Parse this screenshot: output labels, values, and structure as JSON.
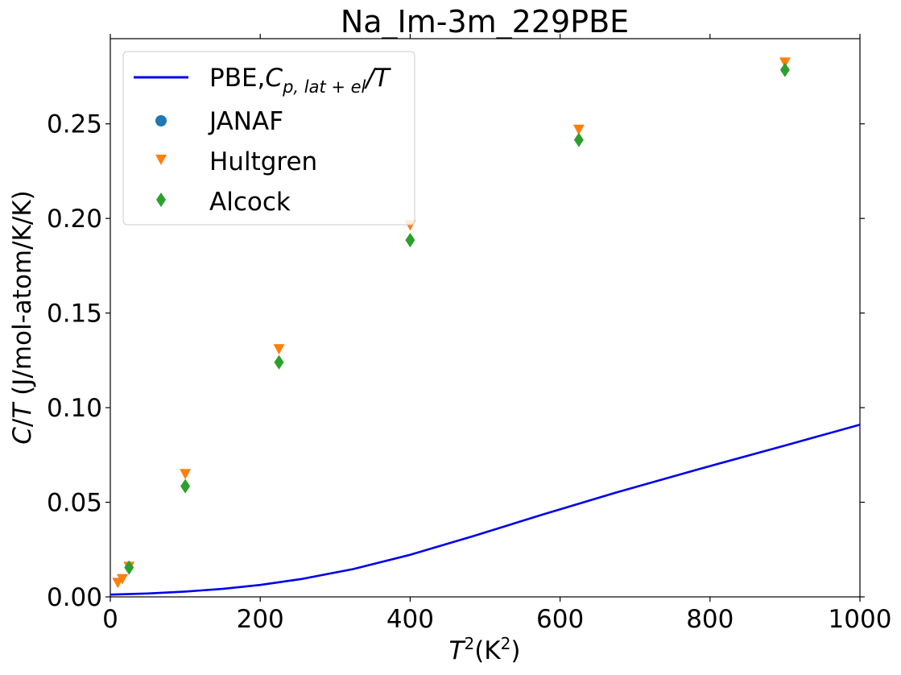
{
  "chart_data": {
    "type": "scatter",
    "title": "Na_Im-3m_229PBE",
    "xlabel": "T²(K²)",
    "ylabel": "C/T (J/mol-atom/K/K)",
    "xlim": [
      0,
      1000
    ],
    "ylim": [
      0,
      0.295
    ],
    "xticks": [
      "0",
      "200",
      "400",
      "600",
      "800",
      "1000"
    ],
    "yticks": [
      "0.00",
      "0.05",
      "0.10",
      "0.15",
      "0.20",
      "0.25"
    ],
    "grid": false,
    "legend_position": "top-left",
    "series": [
      {
        "name": "PBE,Cp,lat+el/T",
        "kind": "line",
        "color": "#0000ee",
        "x": [
          0,
          50,
          100,
          150,
          200,
          256,
          324,
          400,
          484,
          576,
          676,
          784,
          900,
          1000
        ],
        "y": [
          0.0012,
          0.0018,
          0.0028,
          0.0042,
          0.0063,
          0.0095,
          0.0147,
          0.0222,
          0.0321,
          0.0434,
          0.0553,
          0.0674,
          0.08,
          0.091
        ]
      },
      {
        "name": "JANAF",
        "kind": "marker",
        "marker": "circle",
        "color": "#1f77b4",
        "x": [],
        "y": []
      },
      {
        "name": "Hultgren",
        "kind": "marker",
        "marker": "triangle-down",
        "color": "#ff7f0e",
        "x": [
          10,
          16,
          25,
          100,
          225,
          400,
          625,
          900
        ],
        "y": [
          0.0075,
          0.0095,
          0.016,
          0.065,
          0.131,
          0.1965,
          0.247,
          0.2825
        ]
      },
      {
        "name": "Alcock",
        "kind": "marker",
        "marker": "thin-diamond",
        "color": "#2ca02c",
        "x": [
          25,
          100,
          225,
          400,
          625,
          900
        ],
        "y": [
          0.0155,
          0.0585,
          0.124,
          0.1885,
          0.2415,
          0.2785
        ]
      }
    ]
  },
  "legend": {
    "pbe_prefix": "PBE,",
    "pbe_C": "C",
    "pbe_sub": "p, lat + el",
    "pbe_suffix": "/T",
    "janaf": "JANAF",
    "hultgren": "Hultgren",
    "alcock": "Alcock"
  },
  "axis_text": {
    "x_T": "T",
    "x_exp": "2",
    "x_open": "(K",
    "x_exp2": "2",
    "x_close": ")",
    "y_C": "C",
    "y_slash": "/",
    "y_T": "T",
    "y_units": " (J/mol-atom/K/K)"
  }
}
